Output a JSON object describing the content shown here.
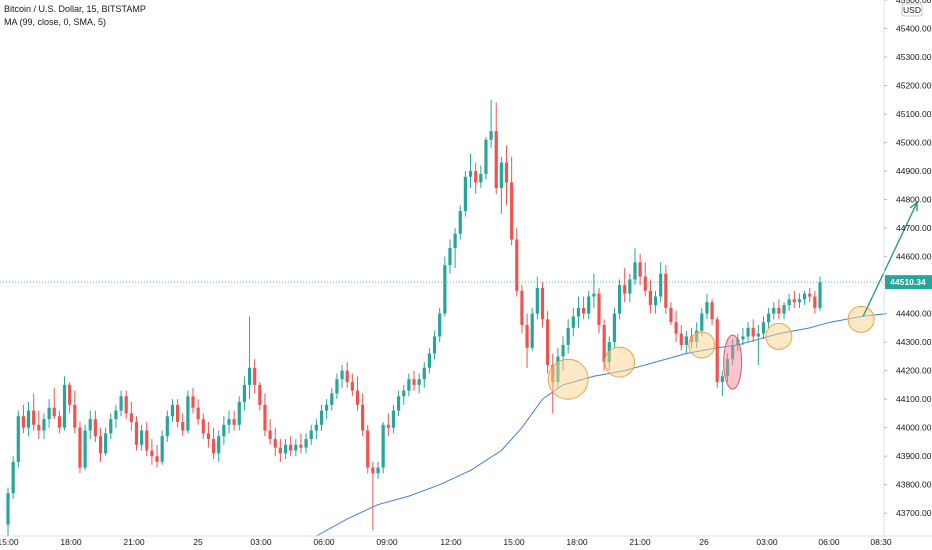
{
  "legend": {
    "symbol_line": "Bitcoin / U.S. Dollar, 15, BITSTAMP",
    "indicator_line": "MA (99, close, 0, SMA, 5)"
  },
  "currency_badge": "USD",
  "price_badge": "44510.34",
  "colors": {
    "up": "#26a69a",
    "down": "#ef5350",
    "ma": "#3f7ee8",
    "arrow": "#2f9e7a",
    "circle_fill": "#fbd38d",
    "circle_stroke": "#f0a04b",
    "ellipse_fill": "#f28b9c",
    "ellipse_stroke": "#e0556b",
    "price_line": "#26a69a",
    "axis_text": "#131722"
  },
  "chart_data": {
    "type": "candlestick",
    "ylim": [
      43620,
      45500
    ],
    "y_ticks": [
      "45500.00",
      "45400.00",
      "45300.00",
      "45200.00",
      "45100.00",
      "45000.00",
      "44900.00",
      "44800.00",
      "44700.00",
      "44600.00",
      "44500.00",
      "44400.00",
      "44300.00",
      "44200.00",
      "44100.00",
      "44000.00",
      "43900.00",
      "43800.00",
      "43700.00"
    ],
    "x_ticks": [
      "15:00",
      "18:00",
      "21:00",
      "25",
      "03:00",
      "06:00",
      "09:00",
      "12:00",
      "15:00",
      "18:00",
      "21:00",
      "26",
      "03:00",
      "06:00",
      "08:30"
    ],
    "last_price": 44510.34,
    "candles": [
      {
        "o": 43660,
        "h": 43790,
        "l": 43620,
        "c": 43770
      },
      {
        "o": 43770,
        "h": 43900,
        "l": 43750,
        "c": 43880
      },
      {
        "o": 43880,
        "h": 44060,
        "l": 43860,
        "c": 44040
      },
      {
        "o": 44040,
        "h": 44080,
        "l": 43980,
        "c": 44000
      },
      {
        "o": 44000,
        "h": 44090,
        "l": 43970,
        "c": 44060
      },
      {
        "o": 44060,
        "h": 44120,
        "l": 43990,
        "c": 44010
      },
      {
        "o": 44010,
        "h": 44060,
        "l": 43960,
        "c": 43990
      },
      {
        "o": 43990,
        "h": 44050,
        "l": 43960,
        "c": 44030
      },
      {
        "o": 44030,
        "h": 44100,
        "l": 44000,
        "c": 44070
      },
      {
        "o": 44070,
        "h": 44140,
        "l": 44030,
        "c": 44040
      },
      {
        "o": 44040,
        "h": 44060,
        "l": 43980,
        "c": 44000
      },
      {
        "o": 44000,
        "h": 44180,
        "l": 43990,
        "c": 44150
      },
      {
        "o": 44150,
        "h": 44160,
        "l": 44050,
        "c": 44080
      },
      {
        "o": 44080,
        "h": 44130,
        "l": 43980,
        "c": 44000
      },
      {
        "o": 44000,
        "h": 44020,
        "l": 43840,
        "c": 43860
      },
      {
        "o": 43860,
        "h": 44010,
        "l": 43850,
        "c": 43990
      },
      {
        "o": 43990,
        "h": 44060,
        "l": 43960,
        "c": 44030
      },
      {
        "o": 44030,
        "h": 44060,
        "l": 43950,
        "c": 43970
      },
      {
        "o": 43970,
        "h": 44000,
        "l": 43880,
        "c": 43910
      },
      {
        "o": 43910,
        "h": 44000,
        "l": 43900,
        "c": 43980
      },
      {
        "o": 43980,
        "h": 44050,
        "l": 43960,
        "c": 44030
      },
      {
        "o": 44030,
        "h": 44080,
        "l": 44000,
        "c": 44060
      },
      {
        "o": 44060,
        "h": 44130,
        "l": 44040,
        "c": 44110
      },
      {
        "o": 44110,
        "h": 44130,
        "l": 44030,
        "c": 44050
      },
      {
        "o": 44050,
        "h": 44090,
        "l": 43990,
        "c": 44020
      },
      {
        "o": 44020,
        "h": 44040,
        "l": 43920,
        "c": 43940
      },
      {
        "o": 43940,
        "h": 44010,
        "l": 43920,
        "c": 43990
      },
      {
        "o": 43990,
        "h": 44020,
        "l": 43900,
        "c": 43920
      },
      {
        "o": 43920,
        "h": 43960,
        "l": 43870,
        "c": 43900
      },
      {
        "o": 43900,
        "h": 43940,
        "l": 43860,
        "c": 43880
      },
      {
        "o": 43880,
        "h": 43990,
        "l": 43870,
        "c": 43970
      },
      {
        "o": 43970,
        "h": 44060,
        "l": 43950,
        "c": 44040
      },
      {
        "o": 44040,
        "h": 44100,
        "l": 44020,
        "c": 44080
      },
      {
        "o": 44080,
        "h": 44100,
        "l": 44000,
        "c": 44020
      },
      {
        "o": 44020,
        "h": 44050,
        "l": 43970,
        "c": 43990
      },
      {
        "o": 43990,
        "h": 44130,
        "l": 43980,
        "c": 44110
      },
      {
        "o": 44110,
        "h": 44140,
        "l": 44050,
        "c": 44070
      },
      {
        "o": 44070,
        "h": 44100,
        "l": 44010,
        "c": 44030
      },
      {
        "o": 44030,
        "h": 44050,
        "l": 43960,
        "c": 43980
      },
      {
        "o": 43980,
        "h": 44020,
        "l": 43930,
        "c": 43960
      },
      {
        "o": 43960,
        "h": 44000,
        "l": 43890,
        "c": 43910
      },
      {
        "o": 43910,
        "h": 43990,
        "l": 43880,
        "c": 43970
      },
      {
        "o": 43970,
        "h": 44040,
        "l": 43940,
        "c": 44010
      },
      {
        "o": 44010,
        "h": 44060,
        "l": 43980,
        "c": 44030
      },
      {
        "o": 44030,
        "h": 44060,
        "l": 43990,
        "c": 44010
      },
      {
        "o": 44010,
        "h": 44110,
        "l": 43990,
        "c": 44090
      },
      {
        "o": 44090,
        "h": 44180,
        "l": 44060,
        "c": 44150
      },
      {
        "o": 44150,
        "h": 44390,
        "l": 44100,
        "c": 44210
      },
      {
        "o": 44210,
        "h": 44240,
        "l": 44120,
        "c": 44150
      },
      {
        "o": 44150,
        "h": 44160,
        "l": 44060,
        "c": 44080
      },
      {
        "o": 44080,
        "h": 44120,
        "l": 43970,
        "c": 43990
      },
      {
        "o": 43990,
        "h": 44030,
        "l": 43940,
        "c": 43960
      },
      {
        "o": 43960,
        "h": 44000,
        "l": 43900,
        "c": 43930
      },
      {
        "o": 43930,
        "h": 43960,
        "l": 43880,
        "c": 43910
      },
      {
        "o": 43910,
        "h": 43960,
        "l": 43890,
        "c": 43940
      },
      {
        "o": 43940,
        "h": 43970,
        "l": 43900,
        "c": 43920
      },
      {
        "o": 43920,
        "h": 43960,
        "l": 43900,
        "c": 43940
      },
      {
        "o": 43940,
        "h": 43980,
        "l": 43910,
        "c": 43930
      },
      {
        "o": 43930,
        "h": 43980,
        "l": 43910,
        "c": 43960
      },
      {
        "o": 43960,
        "h": 44010,
        "l": 43940,
        "c": 43990
      },
      {
        "o": 43990,
        "h": 44030,
        "l": 43960,
        "c": 44010
      },
      {
        "o": 44010,
        "h": 44080,
        "l": 43990,
        "c": 44060
      },
      {
        "o": 44060,
        "h": 44100,
        "l": 44030,
        "c": 44080
      },
      {
        "o": 44080,
        "h": 44140,
        "l": 44060,
        "c": 44120
      },
      {
        "o": 44120,
        "h": 44190,
        "l": 44100,
        "c": 44170
      },
      {
        "o": 44170,
        "h": 44220,
        "l": 44140,
        "c": 44200
      },
      {
        "o": 44200,
        "h": 44230,
        "l": 44140,
        "c": 44160
      },
      {
        "o": 44160,
        "h": 44190,
        "l": 44110,
        "c": 44130
      },
      {
        "o": 44130,
        "h": 44180,
        "l": 44060,
        "c": 44080
      },
      {
        "o": 44080,
        "h": 44120,
        "l": 43970,
        "c": 43990
      },
      {
        "o": 43990,
        "h": 44010,
        "l": 43840,
        "c": 43860
      },
      {
        "o": 43860,
        "h": 43880,
        "l": 43640,
        "c": 43840
      },
      {
        "o": 43840,
        "h": 43880,
        "l": 43820,
        "c": 43860
      },
      {
        "o": 43860,
        "h": 44020,
        "l": 43840,
        "c": 44010
      },
      {
        "o": 44010,
        "h": 44050,
        "l": 43970,
        "c": 44000
      },
      {
        "o": 44000,
        "h": 44080,
        "l": 43980,
        "c": 44060
      },
      {
        "o": 44060,
        "h": 44130,
        "l": 44040,
        "c": 44110
      },
      {
        "o": 44110,
        "h": 44150,
        "l": 44080,
        "c": 44130
      },
      {
        "o": 44130,
        "h": 44190,
        "l": 44110,
        "c": 44170
      },
      {
        "o": 44170,
        "h": 44200,
        "l": 44130,
        "c": 44150
      },
      {
        "o": 44150,
        "h": 44190,
        "l": 44120,
        "c": 44170
      },
      {
        "o": 44170,
        "h": 44230,
        "l": 44140,
        "c": 44210
      },
      {
        "o": 44210,
        "h": 44280,
        "l": 44190,
        "c": 44260
      },
      {
        "o": 44260,
        "h": 44340,
        "l": 44240,
        "c": 44320
      },
      {
        "o": 44320,
        "h": 44420,
        "l": 44300,
        "c": 44400
      },
      {
        "o": 44400,
        "h": 44600,
        "l": 44390,
        "c": 44570
      },
      {
        "o": 44570,
        "h": 44660,
        "l": 44540,
        "c": 44630
      },
      {
        "o": 44630,
        "h": 44700,
        "l": 44560,
        "c": 44680
      },
      {
        "o": 44680,
        "h": 44780,
        "l": 44660,
        "c": 44760
      },
      {
        "o": 44760,
        "h": 44900,
        "l": 44740,
        "c": 44880
      },
      {
        "o": 44880,
        "h": 44960,
        "l": 44840,
        "c": 44900
      },
      {
        "o": 44900,
        "h": 44930,
        "l": 44820,
        "c": 44860
      },
      {
        "o": 44860,
        "h": 44920,
        "l": 44840,
        "c": 44890
      },
      {
        "o": 44890,
        "h": 45020,
        "l": 44870,
        "c": 45010
      },
      {
        "o": 45010,
        "h": 45150,
        "l": 44980,
        "c": 45040
      },
      {
        "o": 45040,
        "h": 45140,
        "l": 44820,
        "c": 44840
      },
      {
        "o": 44840,
        "h": 44950,
        "l": 44750,
        "c": 44930
      },
      {
        "o": 44930,
        "h": 44990,
        "l": 44780,
        "c": 44860
      },
      {
        "o": 44860,
        "h": 44950,
        "l": 44640,
        "c": 44660
      },
      {
        "o": 44660,
        "h": 44700,
        "l": 44460,
        "c": 44480
      },
      {
        "o": 44480,
        "h": 44500,
        "l": 44330,
        "c": 44360
      },
      {
        "o": 44360,
        "h": 44400,
        "l": 44210,
        "c": 44280
      },
      {
        "o": 44280,
        "h": 44420,
        "l": 44270,
        "c": 44400
      },
      {
        "o": 44400,
        "h": 44530,
        "l": 44380,
        "c": 44490
      },
      {
        "o": 44490,
        "h": 44510,
        "l": 44350,
        "c": 44380
      },
      {
        "o": 44380,
        "h": 44410,
        "l": 44190,
        "c": 44220
      },
      {
        "o": 44220,
        "h": 44260,
        "l": 44050,
        "c": 44160
      },
      {
        "o": 44160,
        "h": 44280,
        "l": 44140,
        "c": 44250
      },
      {
        "o": 44250,
        "h": 44320,
        "l": 44200,
        "c": 44290
      },
      {
        "o": 44290,
        "h": 44380,
        "l": 44260,
        "c": 44350
      },
      {
        "o": 44350,
        "h": 44420,
        "l": 44320,
        "c": 44390
      },
      {
        "o": 44390,
        "h": 44460,
        "l": 44350,
        "c": 44420
      },
      {
        "o": 44420,
        "h": 44460,
        "l": 44380,
        "c": 44400
      },
      {
        "o": 44400,
        "h": 44480,
        "l": 44380,
        "c": 44460
      },
      {
        "o": 44460,
        "h": 44540,
        "l": 44420,
        "c": 44470
      },
      {
        "o": 44470,
        "h": 44490,
        "l": 44330,
        "c": 44360
      },
      {
        "o": 44360,
        "h": 44380,
        "l": 44200,
        "c": 44230
      },
      {
        "o": 44230,
        "h": 44320,
        "l": 44200,
        "c": 44300
      },
      {
        "o": 44300,
        "h": 44420,
        "l": 44280,
        "c": 44400
      },
      {
        "o": 44400,
        "h": 44520,
        "l": 44380,
        "c": 44500
      },
      {
        "o": 44500,
        "h": 44560,
        "l": 44440,
        "c": 44470
      },
      {
        "o": 44470,
        "h": 44540,
        "l": 44440,
        "c": 44520
      },
      {
        "o": 44520,
        "h": 44630,
        "l": 44500,
        "c": 44580
      },
      {
        "o": 44580,
        "h": 44610,
        "l": 44500,
        "c": 44530
      },
      {
        "o": 44530,
        "h": 44580,
        "l": 44460,
        "c": 44480
      },
      {
        "o": 44480,
        "h": 44520,
        "l": 44400,
        "c": 44430
      },
      {
        "o": 44430,
        "h": 44480,
        "l": 44400,
        "c": 44460
      },
      {
        "o": 44460,
        "h": 44580,
        "l": 44440,
        "c": 44540
      },
      {
        "o": 44540,
        "h": 44570,
        "l": 44400,
        "c": 44420
      },
      {
        "o": 44420,
        "h": 44440,
        "l": 44360,
        "c": 44370
      },
      {
        "o": 44370,
        "h": 44410,
        "l": 44300,
        "c": 44330
      },
      {
        "o": 44330,
        "h": 44360,
        "l": 44270,
        "c": 44290
      },
      {
        "o": 44290,
        "h": 44340,
        "l": 44260,
        "c": 44320
      },
      {
        "o": 44320,
        "h": 44350,
        "l": 44280,
        "c": 44300
      },
      {
        "o": 44300,
        "h": 44370,
        "l": 44280,
        "c": 44340
      },
      {
        "o": 44340,
        "h": 44420,
        "l": 44320,
        "c": 44400
      },
      {
        "o": 44400,
        "h": 44470,
        "l": 44380,
        "c": 44440
      },
      {
        "o": 44440,
        "h": 44450,
        "l": 44360,
        "c": 44380
      },
      {
        "o": 44380,
        "h": 44390,
        "l": 44140,
        "c": 44160
      },
      {
        "o": 44160,
        "h": 44200,
        "l": 44110,
        "c": 44180
      },
      {
        "o": 44180,
        "h": 44260,
        "l": 44160,
        "c": 44240
      },
      {
        "o": 44240,
        "h": 44310,
        "l": 44220,
        "c": 44290
      },
      {
        "o": 44290,
        "h": 44330,
        "l": 44270,
        "c": 44310
      },
      {
        "o": 44310,
        "h": 44350,
        "l": 44290,
        "c": 44320
      },
      {
        "o": 44320,
        "h": 44370,
        "l": 44300,
        "c": 44350
      },
      {
        "o": 44350,
        "h": 44380,
        "l": 44300,
        "c": 44320
      },
      {
        "o": 44320,
        "h": 44360,
        "l": 44220,
        "c": 44330
      },
      {
        "o": 44330,
        "h": 44390,
        "l": 44310,
        "c": 44370
      },
      {
        "o": 44370,
        "h": 44420,
        "l": 44350,
        "c": 44400
      },
      {
        "o": 44400,
        "h": 44440,
        "l": 44380,
        "c": 44420
      },
      {
        "o": 44420,
        "h": 44450,
        "l": 44380,
        "c": 44400
      },
      {
        "o": 44400,
        "h": 44440,
        "l": 44380,
        "c": 44430
      },
      {
        "o": 44430,
        "h": 44470,
        "l": 44410,
        "c": 44450
      },
      {
        "o": 44450,
        "h": 44480,
        "l": 44420,
        "c": 44440
      },
      {
        "o": 44440,
        "h": 44470,
        "l": 44420,
        "c": 44450
      },
      {
        "o": 44450,
        "h": 44480,
        "l": 44430,
        "c": 44470
      },
      {
        "o": 44470,
        "h": 44490,
        "l": 44440,
        "c": 44460
      },
      {
        "o": 44460,
        "h": 44480,
        "l": 44400,
        "c": 44420
      },
      {
        "o": 44420,
        "h": 44530,
        "l": 44410,
        "c": 44510
      }
    ],
    "ma": {
      "name": "MA (99, close, 0, SMA, 5)",
      "points": [
        [
          60,
          43620
        ],
        [
          66,
          43680
        ],
        [
          72,
          43730
        ],
        [
          78,
          43760
        ],
        [
          84,
          43800
        ],
        [
          90,
          43850
        ],
        [
          96,
          43920
        ],
        [
          100,
          44000
        ],
        [
          104,
          44100
        ],
        [
          108,
          44150
        ],
        [
          114,
          44180
        ],
        [
          120,
          44200
        ],
        [
          126,
          44230
        ],
        [
          132,
          44260
        ],
        [
          138,
          44280
        ],
        [
          142,
          44290
        ],
        [
          146,
          44310
        ],
        [
          150,
          44330
        ],
        [
          156,
          44350
        ],
        [
          160,
          44370
        ],
        [
          166,
          44390
        ],
        [
          171,
          44400
        ]
      ]
    },
    "annotations": {
      "circles": [
        {
          "x": 109,
          "y": 44170,
          "size": "large"
        },
        {
          "x": 119,
          "y": 44230,
          "size": "medium"
        },
        {
          "x": 135,
          "y": 44290,
          "size": "small"
        },
        {
          "x": 150,
          "y": 44320,
          "size": "small"
        },
        {
          "x": 166,
          "y": 44380,
          "size": "small"
        }
      ],
      "ellipse": {
        "x": 141,
        "y": 44230
      },
      "arrow": {
        "from": [
          166,
          44390
        ],
        "to": [
          173,
          44790
        ]
      }
    }
  }
}
